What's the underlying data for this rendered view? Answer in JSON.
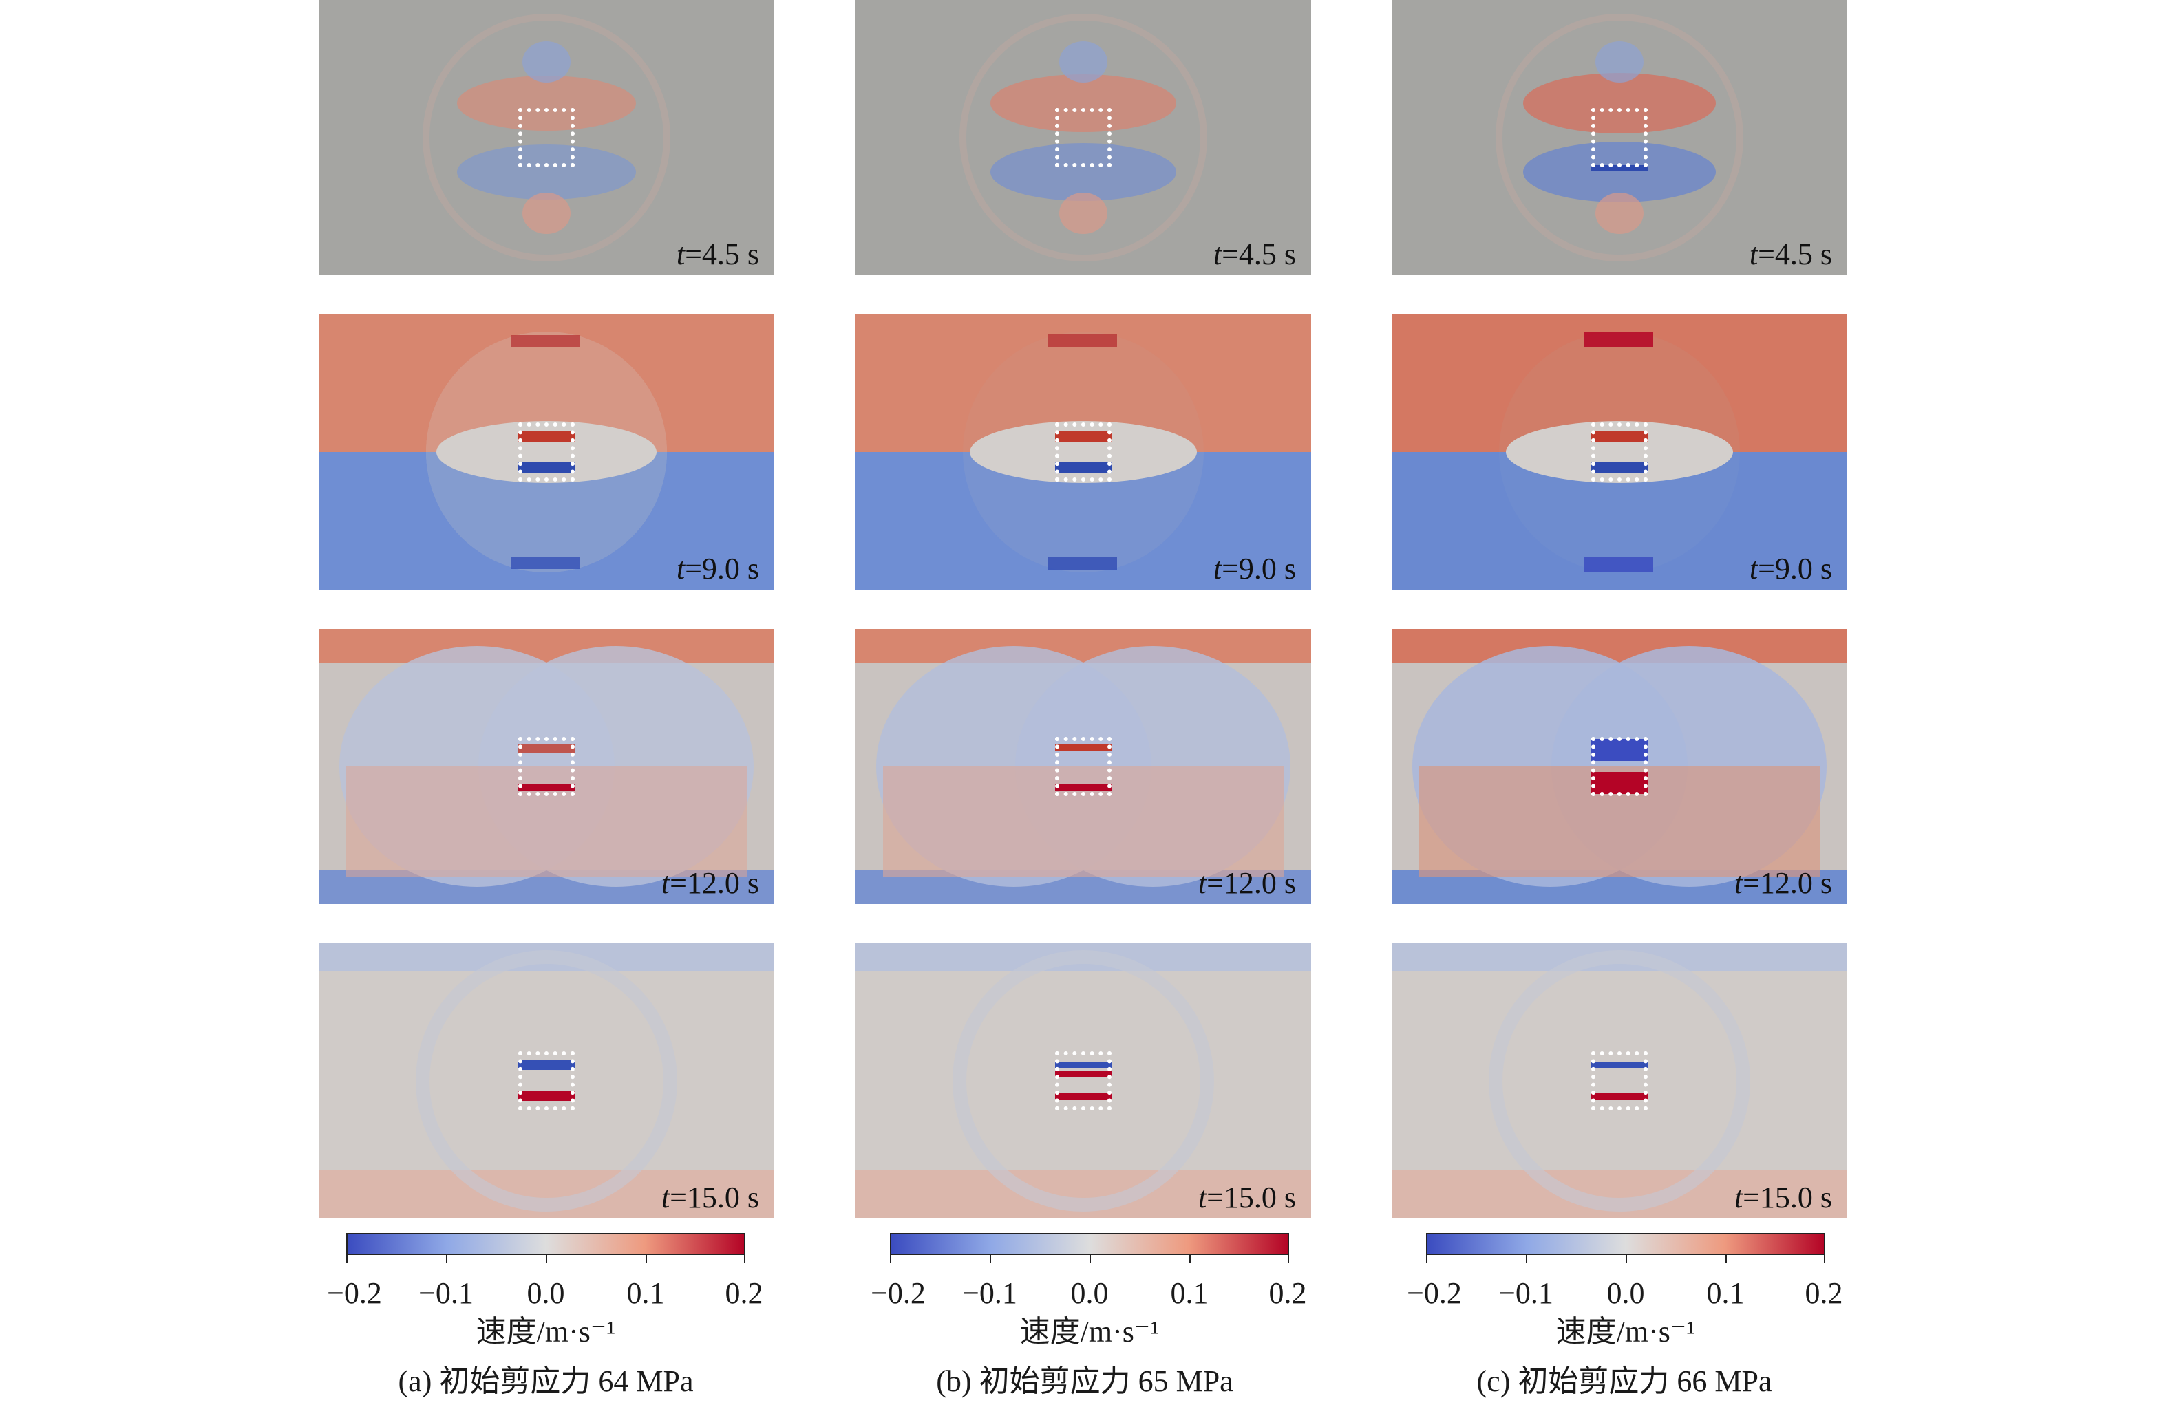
{
  "columns": [
    {
      "id": "a",
      "caption": "(a) 初始剪应力 64 MPa",
      "colorbar": {
        "title": "速度/m·s⁻¹",
        "ticks": [
          "−0.2",
          "−0.1",
          "0.0",
          "0.1",
          "0.2"
        ]
      },
      "frames": [
        {
          "t_var": "t",
          "t_value": "=4.5 s"
        },
        {
          "t_var": "t",
          "t_value": "=9.0 s"
        },
        {
          "t_var": "t",
          "t_value": "=12.0 s"
        },
        {
          "t_var": "t",
          "t_value": "=15.0 s"
        }
      ]
    },
    {
      "id": "b",
      "caption": "(b) 初始剪应力 65 MPa",
      "colorbar": {
        "title": "速度/m·s⁻¹",
        "ticks": [
          "−0.2",
          "−0.1",
          "0.0",
          "0.1",
          "0.2"
        ]
      },
      "frames": [
        {
          "t_var": "t",
          "t_value": "=4.5 s"
        },
        {
          "t_var": "t",
          "t_value": "=9.0 s"
        },
        {
          "t_var": "t",
          "t_value": "=12.0 s"
        },
        {
          "t_var": "t",
          "t_value": "=15.0 s"
        }
      ]
    },
    {
      "id": "c",
      "caption": "(c) 初始剪应力 66 MPa",
      "colorbar": {
        "title": "速度/m·s⁻¹",
        "ticks": [
          "−0.2",
          "−0.1",
          "0.0",
          "0.1",
          "0.2"
        ]
      },
      "frames": [
        {
          "t_var": "t",
          "t_value": "=4.5 s"
        },
        {
          "t_var": "t",
          "t_value": "=9.0 s"
        },
        {
          "t_var": "t",
          "t_value": "=12.0 s"
        },
        {
          "t_var": "t",
          "t_value": "=15.0 s"
        }
      ]
    }
  ],
  "colormap": {
    "low": "#3b4cc0",
    "mid": "#dddddd",
    "high": "#b40426"
  },
  "background_color": "#a5a5a2"
}
